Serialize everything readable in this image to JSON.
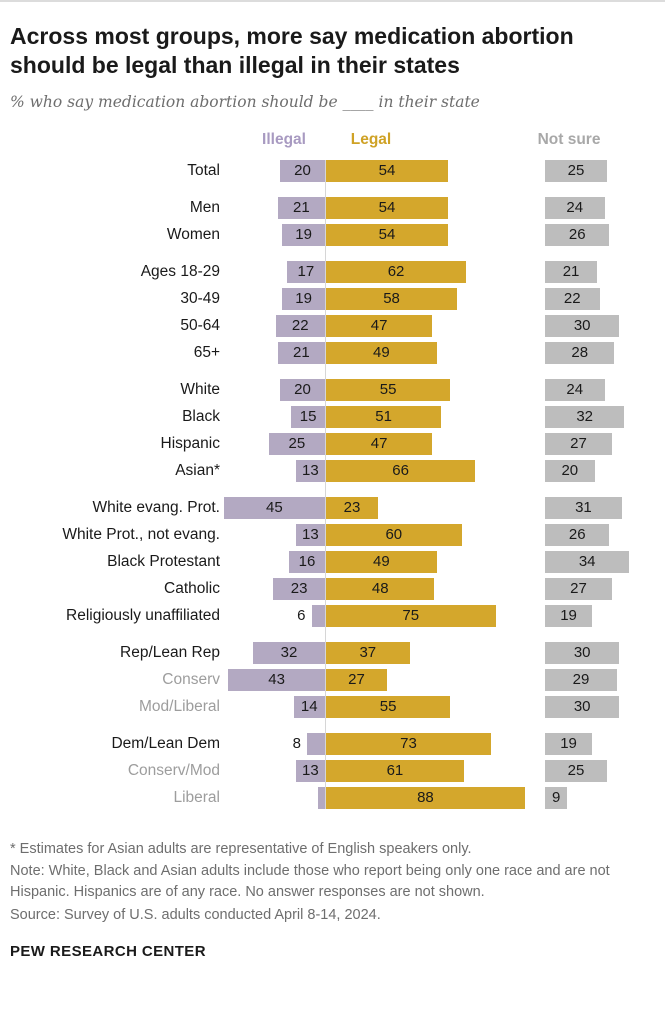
{
  "title": "Across most groups, more say medication abortion\nshould be legal than illegal in their states",
  "subtitle": "% who say medication abortion should be ____ in their state",
  "chart_data": {
    "type": "bar",
    "unit": "%",
    "legend": [
      {
        "key": "illegal",
        "label": "Illegal",
        "color": "#b3a9c2",
        "header_color": "#a89ac1"
      },
      {
        "key": "legal",
        "label": "Legal",
        "color": "#d4a72c",
        "header_color": "#cfa226"
      },
      {
        "key": "not_sure",
        "label": "Not sure",
        "color": "#bdbdbd",
        "header_color": "#a8a8a8"
      }
    ],
    "axis_note": "Illegal bars extend left of a vertical baseline, Legal bars extend right; Not sure bars plotted in a separate right-hand column",
    "groups": [
      [
        {
          "label": "Total",
          "illegal": 20,
          "legal": 54,
          "not_sure": 25
        }
      ],
      [
        {
          "label": "Men",
          "illegal": 21,
          "legal": 54,
          "not_sure": 24
        },
        {
          "label": "Women",
          "illegal": 19,
          "legal": 54,
          "not_sure": 26
        }
      ],
      [
        {
          "label": "Ages 18-29",
          "illegal": 17,
          "legal": 62,
          "not_sure": 21
        },
        {
          "label": "30-49",
          "illegal": 19,
          "legal": 58,
          "not_sure": 22
        },
        {
          "label": "50-64",
          "illegal": 22,
          "legal": 47,
          "not_sure": 30
        },
        {
          "label": "65+",
          "illegal": 21,
          "legal": 49,
          "not_sure": 28
        }
      ],
      [
        {
          "label": "White",
          "illegal": 20,
          "legal": 55,
          "not_sure": 24
        },
        {
          "label": "Black",
          "illegal": 15,
          "legal": 51,
          "not_sure": 32
        },
        {
          "label": "Hispanic",
          "illegal": 25,
          "legal": 47,
          "not_sure": 27
        },
        {
          "label": "Asian*",
          "illegal": 13,
          "legal": 66,
          "not_sure": 20
        }
      ],
      [
        {
          "label": "White evang. Prot.",
          "illegal": 45,
          "legal": 23,
          "not_sure": 31
        },
        {
          "label": "White Prot., not evang.",
          "illegal": 13,
          "legal": 60,
          "not_sure": 26
        },
        {
          "label": "Black Protestant",
          "illegal": 16,
          "legal": 49,
          "not_sure": 34
        },
        {
          "label": "Catholic",
          "illegal": 23,
          "legal": 48,
          "not_sure": 27
        },
        {
          "label": "Religiously unaffiliated",
          "illegal": 6,
          "legal": 75,
          "not_sure": 19
        }
      ],
      [
        {
          "label": "Rep/Lean Rep",
          "illegal": 32,
          "legal": 37,
          "not_sure": 30
        },
        {
          "label": "Conserv",
          "muted": true,
          "illegal": 43,
          "legal": 27,
          "not_sure": 29
        },
        {
          "label": "Mod/Liberal",
          "muted": true,
          "illegal": 14,
          "legal": 55,
          "not_sure": 30
        }
      ],
      [
        {
          "label": "Dem/Lean Dem",
          "illegal": 8,
          "legal": 73,
          "not_sure": 19
        },
        {
          "label": "Conserv/Mod",
          "muted": true,
          "illegal": 13,
          "legal": 61,
          "not_sure": 25
        },
        {
          "label": "Liberal",
          "muted": true,
          "illegal": 3,
          "hide_illegal_label": true,
          "legal": 88,
          "not_sure": 9
        }
      ]
    ]
  },
  "footnotes": [
    "* Estimates for Asian adults are representative of English speakers only.",
    "Note: White, Black and Asian adults include those who report being only one race and are not Hispanic. Hispanics are of any race. No answer responses are not shown.",
    "Source: Survey of U.S. adults conducted April 8-14, 2024."
  ],
  "brand": "PEW RESEARCH CENTER"
}
